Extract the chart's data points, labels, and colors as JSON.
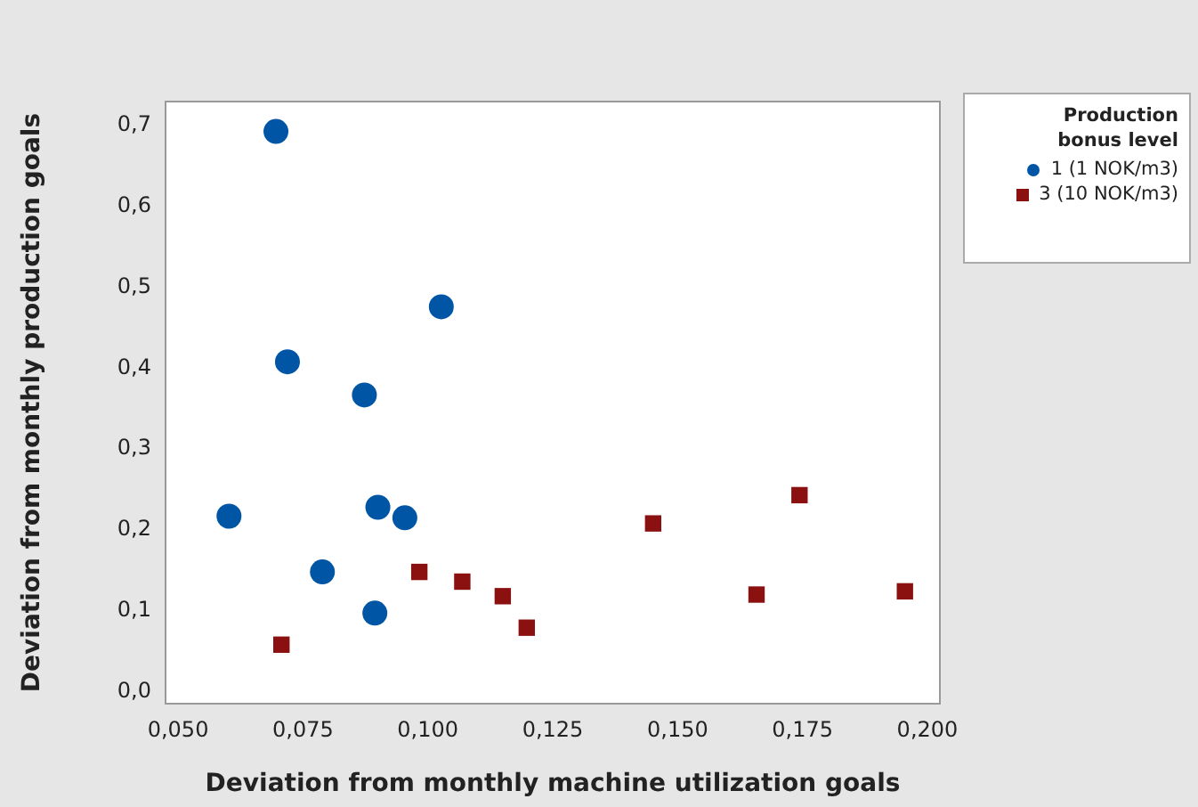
{
  "chart_data": {
    "type": "scatter",
    "xlabel": "Deviation from monthly machine utilization goals",
    "ylabel": "Deviation from monthly production goals",
    "legend_title": "Production bonus level",
    "legend": "right",
    "grid": false,
    "xlim": [
      0.0475,
      0.2025
    ],
    "ylim": [
      -0.015,
      0.73
    ],
    "xticks": [
      {
        "value": 0.05,
        "label": "0,050"
      },
      {
        "value": 0.075,
        "label": "0,075"
      },
      {
        "value": 0.1,
        "label": "0,100"
      },
      {
        "value": 0.125,
        "label": "0,125"
      },
      {
        "value": 0.15,
        "label": "0,150"
      },
      {
        "value": 0.175,
        "label": "0,175"
      },
      {
        "value": 0.2,
        "label": "0,200"
      }
    ],
    "yticks": [
      {
        "value": 0,
        "label": "0,0"
      },
      {
        "value": 0.1,
        "label": "0,1"
      },
      {
        "value": 0.2,
        "label": "0,2"
      },
      {
        "value": 0.3,
        "label": "0,3"
      },
      {
        "value": 0.4,
        "label": "0,4"
      },
      {
        "value": 0.5,
        "label": "0,5"
      },
      {
        "value": 0.6,
        "label": "0,6"
      },
      {
        "value": 0.7,
        "label": "0,7"
      }
    ],
    "series": [
      {
        "name": "1 (1 NOK/m3)",
        "color": "#0055a5",
        "marker": "circle",
        "x": [
          0.0696,
          0.0719,
          0.1027,
          0.0873,
          0.0602,
          0.09,
          0.0954,
          0.0789,
          0.0894
        ],
        "values": [
          0.693,
          0.408,
          0.476,
          0.367,
          0.217,
          0.228,
          0.215,
          0.148,
          0.097
        ]
      },
      {
        "name": "3 (10 NOK/m3)",
        "color": "#8b1010",
        "marker": "square",
        "x": [
          0.0707,
          0.0983,
          0.1069,
          0.115,
          0.1198,
          0.1451,
          0.1658,
          0.1744,
          0.1955
        ],
        "values": [
          0.058,
          0.148,
          0.136,
          0.118,
          0.079,
          0.208,
          0.12,
          0.243,
          0.124
        ]
      }
    ]
  }
}
